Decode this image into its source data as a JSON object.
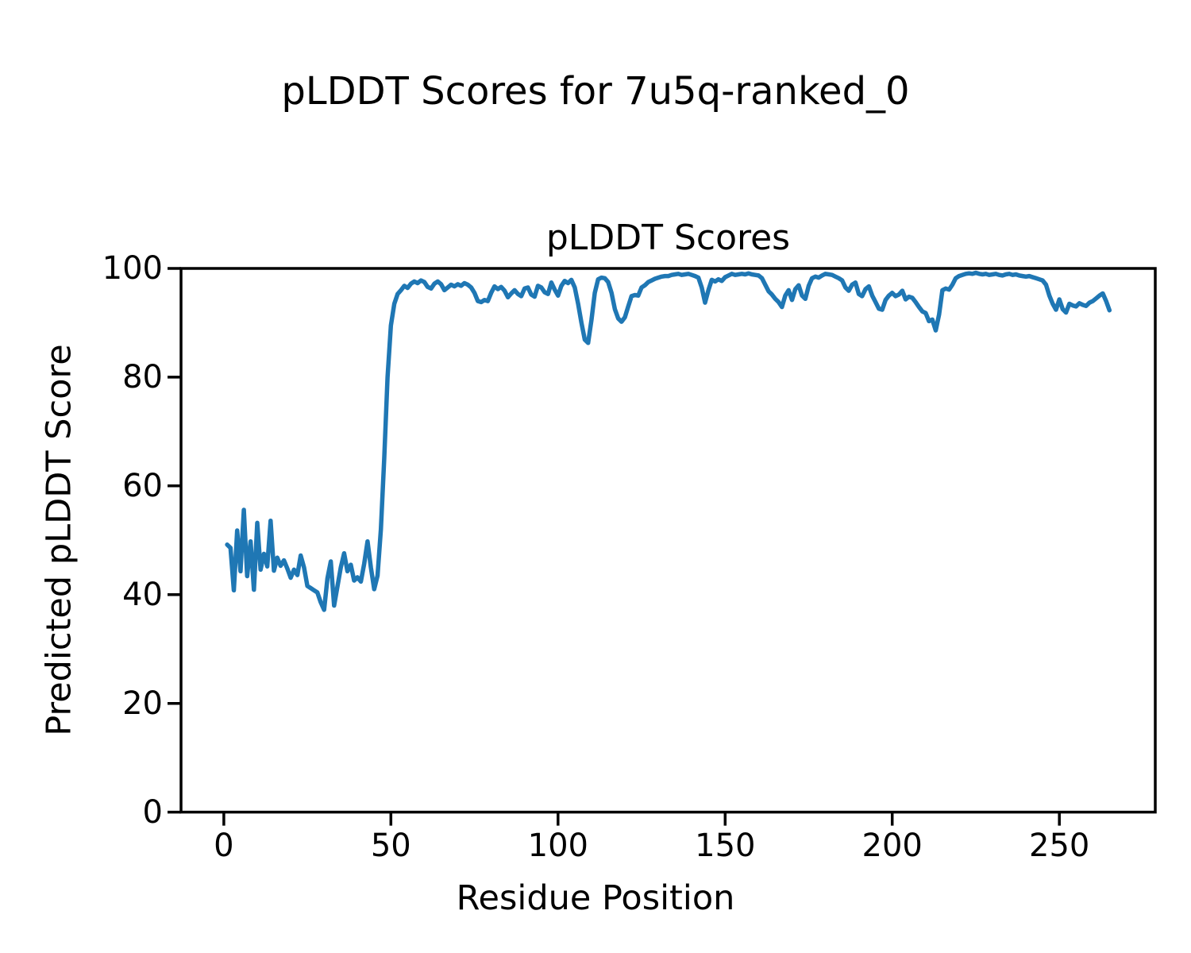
{
  "figure": {
    "suptitle": "pLDDT Scores for 7u5q-ranked_0"
  },
  "axes": {
    "title": "pLDDT Scores",
    "xlabel": "Residue Position",
    "ylabel": "Predicted pLDDT Score"
  },
  "chart_data": {
    "type": "line",
    "title": "pLDDT Scores",
    "suptitle": "pLDDT Scores for 7u5q-ranked_0",
    "xlabel": "Residue Position",
    "ylabel": "Predicted pLDDT Score",
    "x_ticks": [
      0,
      50,
      100,
      150,
      200,
      250
    ],
    "y_ticks": [
      0,
      20,
      40,
      60,
      80,
      100
    ],
    "xlim": [
      -12.8,
      278.7
    ],
    "ylim": [
      0,
      100
    ],
    "grid": false,
    "legend": "none",
    "frame_color": "#000000",
    "series": [
      {
        "name": "pLDDT",
        "color": "#1f77b4",
        "x_start": 1,
        "x_step": 1,
        "values": [
          49.2,
          48.6,
          40.8,
          51.8,
          44.3,
          55.6,
          43.4,
          49.8,
          40.9,
          53.2,
          44.6,
          47.5,
          45.2,
          53.6,
          44.4,
          46.8,
          45.3,
          46.3,
          44.8,
          43.1,
          44.6,
          43.6,
          47.2,
          45.0,
          41.6,
          41.2,
          40.8,
          40.4,
          38.6,
          37.2,
          43.0,
          46.1,
          38.0,
          41.5,
          45.0,
          47.6,
          44.3,
          45.5,
          42.6,
          43.2,
          42.4,
          45.7,
          49.8,
          45.0,
          41.0,
          43.5,
          52.0,
          65.0,
          80.0,
          89.5,
          93.5,
          95.3,
          96.0,
          96.8,
          96.4,
          97.2,
          97.6,
          97.3,
          97.8,
          97.5,
          96.6,
          96.3,
          97.2,
          97.6,
          97.1,
          96.0,
          96.5,
          97.0,
          96.7,
          97.1,
          96.8,
          97.3,
          97.0,
          96.5,
          95.5,
          94.0,
          93.8,
          94.2,
          94.0,
          95.5,
          96.7,
          96.2,
          96.6,
          95.9,
          94.7,
          95.4,
          96.0,
          95.3,
          94.9,
          96.3,
          96.5,
          95.2,
          94.8,
          96.8,
          96.5,
          95.6,
          95.3,
          97.4,
          96.1,
          95.0,
          96.8,
          97.7,
          97.3,
          97.9,
          96.5,
          93.5,
          90.0,
          86.9,
          86.3,
          90.5,
          95.5,
          98.0,
          98.3,
          98.2,
          97.5,
          95.5,
          92.5,
          90.8,
          90.2,
          91.0,
          93.0,
          94.9,
          95.1,
          95.0,
          96.5,
          96.9,
          97.5,
          97.8,
          98.1,
          98.3,
          98.5,
          98.6,
          98.6,
          98.8,
          98.9,
          99.0,
          98.8,
          98.9,
          99.0,
          98.8,
          98.6,
          98.3,
          96.5,
          93.7,
          96.0,
          97.9,
          97.6,
          98.0,
          97.7,
          98.4,
          98.7,
          99.0,
          98.8,
          98.9,
          99.0,
          98.9,
          99.1,
          98.9,
          98.8,
          98.7,
          98.2,
          97.0,
          95.8,
          95.2,
          94.4,
          93.8,
          92.9,
          95.0,
          96.0,
          94.2,
          96.2,
          96.9,
          95.0,
          94.4,
          96.8,
          98.2,
          98.5,
          98.3,
          98.7,
          99.0,
          98.9,
          98.8,
          98.5,
          98.2,
          97.8,
          96.5,
          95.9,
          97.0,
          97.4,
          95.3,
          94.9,
          96.2,
          96.7,
          95.0,
          93.8,
          92.6,
          92.4,
          94.2,
          95.0,
          95.5,
          94.9,
          95.2,
          95.9,
          94.3,
          94.8,
          94.6,
          93.8,
          92.9,
          92.1,
          91.8,
          90.3,
          90.6,
          88.6,
          91.5,
          96.0,
          96.3,
          96.1,
          97.0,
          98.2,
          98.6,
          98.8,
          99.0,
          99.1,
          99.0,
          99.2,
          99.0,
          98.9,
          99.0,
          98.8,
          98.9,
          99.0,
          98.8,
          98.7,
          98.9,
          99.0,
          98.8,
          98.9,
          98.7,
          98.6,
          98.5,
          98.6,
          98.4,
          98.2,
          98.0,
          97.8,
          97.0,
          95.0,
          93.5,
          92.4,
          94.3,
          92.5,
          91.9,
          93.5,
          93.2,
          93.0,
          93.6,
          93.3,
          93.1,
          93.7,
          94.0,
          94.5,
          95.0,
          95.4,
          94.0,
          92.3
        ]
      }
    ]
  }
}
